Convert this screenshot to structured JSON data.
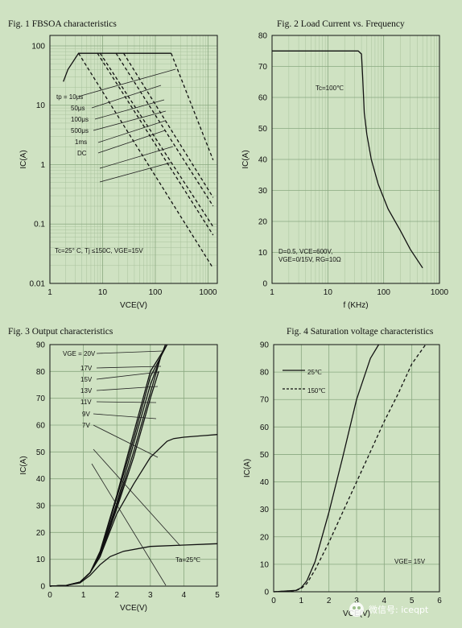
{
  "chart_data": [
    {
      "type": "line",
      "title": "Fig. 1  FBSOA characteristics",
      "xlabel": "VCE(V)",
      "ylabel": "IC(A)",
      "xscale": "log",
      "yscale": "log",
      "xlim": [
        1,
        1500
      ],
      "ylim": [
        0.01,
        150
      ],
      "xticks": [
        1,
        10,
        100,
        1000
      ],
      "xtick_labels": [
        "1",
        "10",
        "100",
        "1000"
      ],
      "yticks": [
        0.01,
        0.1,
        1,
        10,
        100
      ],
      "ytick_labels": [
        "0.01",
        "0.1",
        "1",
        "10",
        "100"
      ],
      "grid": true,
      "legend_labels": [
        "tp = 10μs",
        "50μs",
        "100μs",
        "500μs",
        "1ms",
        "DC"
      ],
      "annotation": "Tc=25° C, Tj ≤150C, VGE=15V",
      "series": [
        {
          "name": "boundary",
          "style": "solid",
          "x": [
            1.8,
            2.2,
            3.5,
            200
          ],
          "y": [
            25,
            40,
            75,
            75
          ]
        },
        {
          "name": "tp = 10μs",
          "style": "dashed",
          "x": [
            200,
            1250
          ],
          "y": [
            75,
            1.2
          ]
        },
        {
          "name": "50μs",
          "style": "dashed",
          "x": [
            25,
            1250
          ],
          "y": [
            75,
            0.28
          ]
        },
        {
          "name": "100μs",
          "style": "dashed",
          "x": [
            18,
            1250
          ],
          "y": [
            75,
            0.2
          ]
        },
        {
          "name": "500μs",
          "style": "dashed",
          "x": [
            9,
            1250
          ],
          "y": [
            75,
            0.09
          ]
        },
        {
          "name": "1ms",
          "style": "dashed",
          "x": [
            8,
            1250
          ],
          "y": [
            75,
            0.065
          ]
        },
        {
          "name": "DC",
          "style": "dashed",
          "x": [
            3.5,
            1250
          ],
          "y": [
            75,
            0.018
          ]
        }
      ]
    },
    {
      "type": "line",
      "title": "Fig. 2 Load Current vs. Frequency",
      "xlabel": "f (KHz)",
      "ylabel": "IC(A)",
      "xscale": "log",
      "xlim": [
        1,
        1000
      ],
      "ylim": [
        0,
        80
      ],
      "xticks": [
        1,
        10,
        100,
        1000
      ],
      "xtick_labels": [
        "1",
        "10",
        "100",
        "1000"
      ],
      "yticks": [
        0,
        10,
        20,
        30,
        40,
        50,
        60,
        70,
        80
      ],
      "grid": true,
      "annotations": [
        "Tc=100℃",
        "D=0.5, VCE=600V,",
        "VGE=0/15V, RG=10Ω"
      ],
      "series": [
        {
          "name": "load current",
          "x": [
            1,
            35,
            40,
            42,
            45,
            50,
            60,
            80,
            120,
            200,
            300,
            500
          ],
          "y": [
            75,
            75,
            74,
            67,
            55,
            48,
            40,
            32,
            24,
            17,
            11,
            5
          ]
        }
      ]
    },
    {
      "type": "line",
      "title": "Fig. 3 Output characteristics",
      "xlabel": "VCE(V)",
      "ylabel": "IC(A)",
      "xlim": [
        0,
        5
      ],
      "ylim": [
        0,
        90
      ],
      "xticks": [
        0,
        1,
        2,
        3,
        4,
        5
      ],
      "yticks": [
        0,
        10,
        20,
        30,
        40,
        50,
        60,
        70,
        80,
        90
      ],
      "grid": true,
      "legend_labels": [
        "VGE = 20V",
        "17V",
        "15V",
        "13V",
        "11V",
        "9V",
        "7V"
      ],
      "annotation": "Ta=25℃",
      "series": [
        {
          "name": "VGE = 20V",
          "x": [
            0,
            0.5,
            0.9,
            1.2,
            1.5,
            2.0,
            2.5,
            3.0,
            3.5
          ],
          "y": [
            0,
            0.3,
            1.5,
            5,
            13,
            34,
            57,
            80,
            90
          ]
        },
        {
          "name": "17V",
          "x": [
            0,
            0.5,
            0.9,
            1.2,
            1.5,
            2.0,
            2.5,
            3.0,
            3.5
          ],
          "y": [
            0,
            0.3,
            1.5,
            5,
            12.5,
            33,
            55,
            78,
            90
          ]
        },
        {
          "name": "15V",
          "x": [
            0,
            0.5,
            0.9,
            1.2,
            1.5,
            2.0,
            2.5,
            3.0,
            3.45
          ],
          "y": [
            0,
            0.3,
            1.5,
            5,
            12,
            31,
            53,
            75,
            90
          ]
        },
        {
          "name": "13V",
          "x": [
            0,
            0.5,
            0.9,
            1.2,
            1.5,
            2.0,
            2.5,
            3.0,
            3.3
          ],
          "y": [
            0,
            0.3,
            1.5,
            5,
            12,
            30,
            50,
            72,
            85
          ]
        },
        {
          "name": "11V",
          "x": [
            0,
            0.5,
            0.9,
            1.2,
            1.5,
            2.0,
            2.5,
            3.0,
            3.25
          ],
          "y": [
            0,
            0.3,
            1.5,
            5,
            11,
            29,
            48,
            70,
            80
          ]
        },
        {
          "name": "9V",
          "x": [
            0,
            0.5,
            0.9,
            1.2,
            1.5,
            2.0,
            2.5,
            3.0,
            3.5,
            3.7,
            4.0,
            5.0
          ],
          "y": [
            0,
            0.3,
            1.5,
            5,
            11,
            27,
            38,
            48,
            54,
            55,
            55.5,
            56.5
          ]
        },
        {
          "name": "7V",
          "x": [
            0,
            0.5,
            0.9,
            1.2,
            1.5,
            1.8,
            2.2,
            3.0,
            4.0,
            5.0
          ],
          "y": [
            0,
            0.3,
            1.2,
            4,
            8,
            11,
            13,
            14.8,
            15.3,
            15.8
          ]
        }
      ]
    },
    {
      "type": "line",
      "title": "Fig. 4 Saturation voltage characteristics",
      "xlabel": "VCE(V)",
      "ylabel": "IC(A)",
      "xlim": [
        0,
        6
      ],
      "ylim": [
        0,
        90
      ],
      "xticks": [
        0,
        1,
        2,
        3,
        4,
        5,
        6
      ],
      "yticks": [
        0,
        10,
        20,
        30,
        40,
        50,
        60,
        70,
        80,
        90
      ],
      "grid": true,
      "annotation": "VGE= 15V",
      "series": [
        {
          "name": "25℃",
          "style": "solid",
          "x": [
            0,
            0.8,
            1.0,
            1.2,
            1.5,
            2.0,
            2.5,
            3.0,
            3.5,
            3.8
          ],
          "y": [
            0,
            0.5,
            1.5,
            4,
            11,
            29,
            49,
            70,
            85,
            90
          ]
        },
        {
          "name": "150℃",
          "style": "dashed",
          "x": [
            0,
            0.8,
            1.0,
            1.2,
            1.5,
            2.0,
            2.5,
            3.0,
            3.5,
            4.0,
            4.5,
            5.0,
            5.5
          ],
          "y": [
            0,
            0.4,
            1.2,
            3,
            8,
            18,
            29,
            40,
            51,
            62,
            72,
            83,
            90
          ]
        }
      ]
    }
  ],
  "watermark": {
    "text": "微信号: iceqpt"
  }
}
